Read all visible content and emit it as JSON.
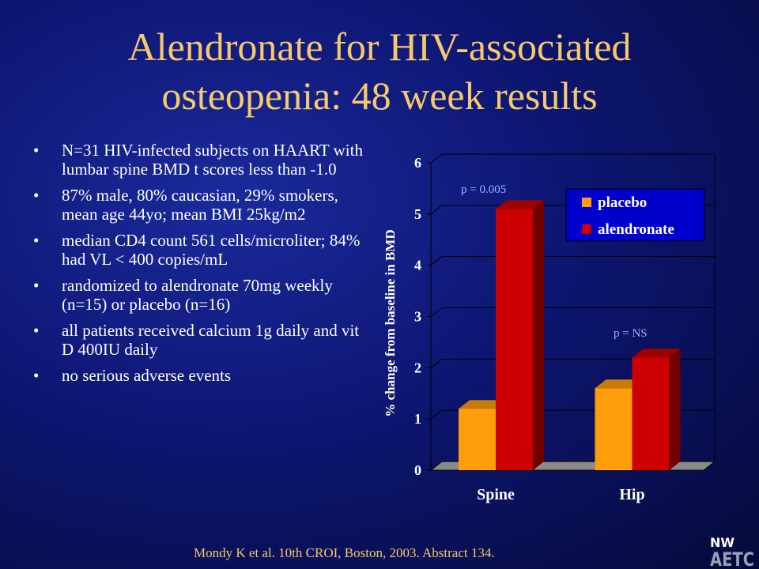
{
  "slide": {
    "title_lines": [
      "Alendronate for HIV-associated",
      "osteopenia: 48 week results"
    ],
    "bullets": [
      "N=31 HIV-infected subjects on HAART with lumbar spine BMD t scores less than -1.0",
      "87% male, 80% caucasian, 29% smokers, mean age 44yo; mean BMI 25kg/m2",
      "median CD4 count 561 cells/microliter; 84% had VL < 400 copies/mL",
      "randomized to alendronate 70mg weekly (n=15) or placebo (n=16)",
      "all patients received calcium 1g daily and vit D 400IU daily",
      "no serious adverse events"
    ],
    "citation": "Mondy K et al.  10th CROI, Boston, 2003.  Abstract 134.",
    "logo_text": [
      "NW",
      "AETC"
    ]
  },
  "chart_data": {
    "type": "bar",
    "categories": [
      "Spine",
      "Hip"
    ],
    "series": [
      {
        "name": "placebo",
        "values": [
          1.2,
          1.6
        ],
        "color": "#ff9e0a"
      },
      {
        "name": "alendronate",
        "values": [
          5.1,
          2.2
        ],
        "color": "#cc0000"
      }
    ],
    "ylabel": "% change from baseline in BMD",
    "ylim": [
      0,
      6
    ],
    "yticks": [
      0,
      1,
      2,
      3,
      4,
      5,
      6
    ],
    "grid": true,
    "legend_position": "top-right",
    "annotations": [
      "p = 0.005",
      "p = NS"
    ]
  }
}
